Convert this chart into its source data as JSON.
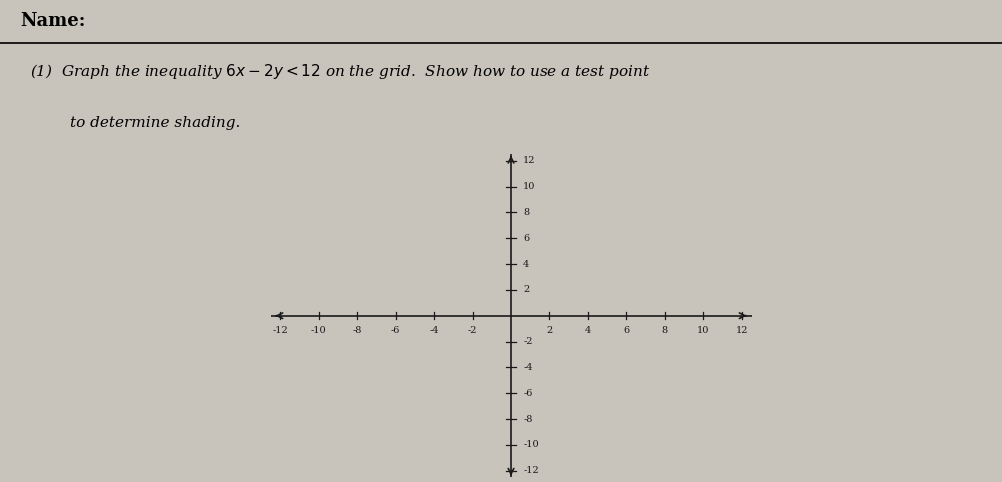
{
  "title_name": "Name:",
  "problem_text_line1": "(1)  Graph the inequality $6x - 2y < 12$ on the grid.  Show how to use a test point",
  "problem_text_line2": "      to determine shading.",
  "x_min": -12,
  "x_max": 12,
  "y_min": -12,
  "y_max": 12,
  "tick_step": 2,
  "bg_color": "#c8c4bc",
  "axes_color": "#1a1a1a",
  "tick_label_color": "#1a1a1a",
  "tick_label_fontsize": 7,
  "figsize": [
    10.02,
    4.82
  ],
  "dpi": 100
}
